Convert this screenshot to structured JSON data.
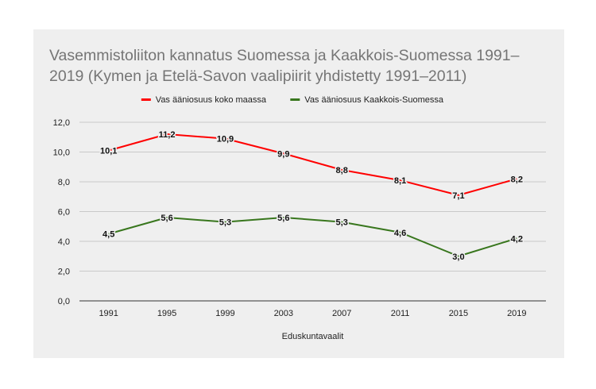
{
  "chart_data": {
    "type": "line",
    "title": "Vasemmistoliiton kannatus Suomessa ja Kaakkois-Suomessa 1991–2019 (Kymen ja Etelä-Savon vaalipiirit yhdistetty 1991–2011)",
    "xlabel": "Eduskuntavaalit",
    "ylabel": "",
    "categories": [
      "1991",
      "1995",
      "1999",
      "2003",
      "2007",
      "2011",
      "2015",
      "2019"
    ],
    "ylim": [
      0,
      12
    ],
    "yticks": [
      "0,0",
      "2,0",
      "4,0",
      "6,0",
      "8,0",
      "10,0",
      "12,0"
    ],
    "grid": true,
    "legend_position": "top",
    "series": [
      {
        "name": "Vas ääniosuus koko maassa",
        "color": "#ff0000",
        "values": [
          10.1,
          11.2,
          10.9,
          9.9,
          8.8,
          8.1,
          7.1,
          8.2
        ],
        "labels": [
          "10,1",
          "11,2",
          "10,9",
          "9,9",
          "8,8",
          "8,1",
          "7,1",
          "8,2"
        ]
      },
      {
        "name": "Vas ääniosuus Kaakkois-Suomessa",
        "color": "#38761d",
        "values": [
          4.5,
          5.6,
          5.3,
          5.6,
          5.3,
          4.6,
          3.0,
          4.2
        ],
        "labels": [
          "4,5",
          "5,6",
          "5,3",
          "5,6",
          "5,3",
          "4,6",
          "3,0",
          "4,2"
        ]
      }
    ]
  }
}
